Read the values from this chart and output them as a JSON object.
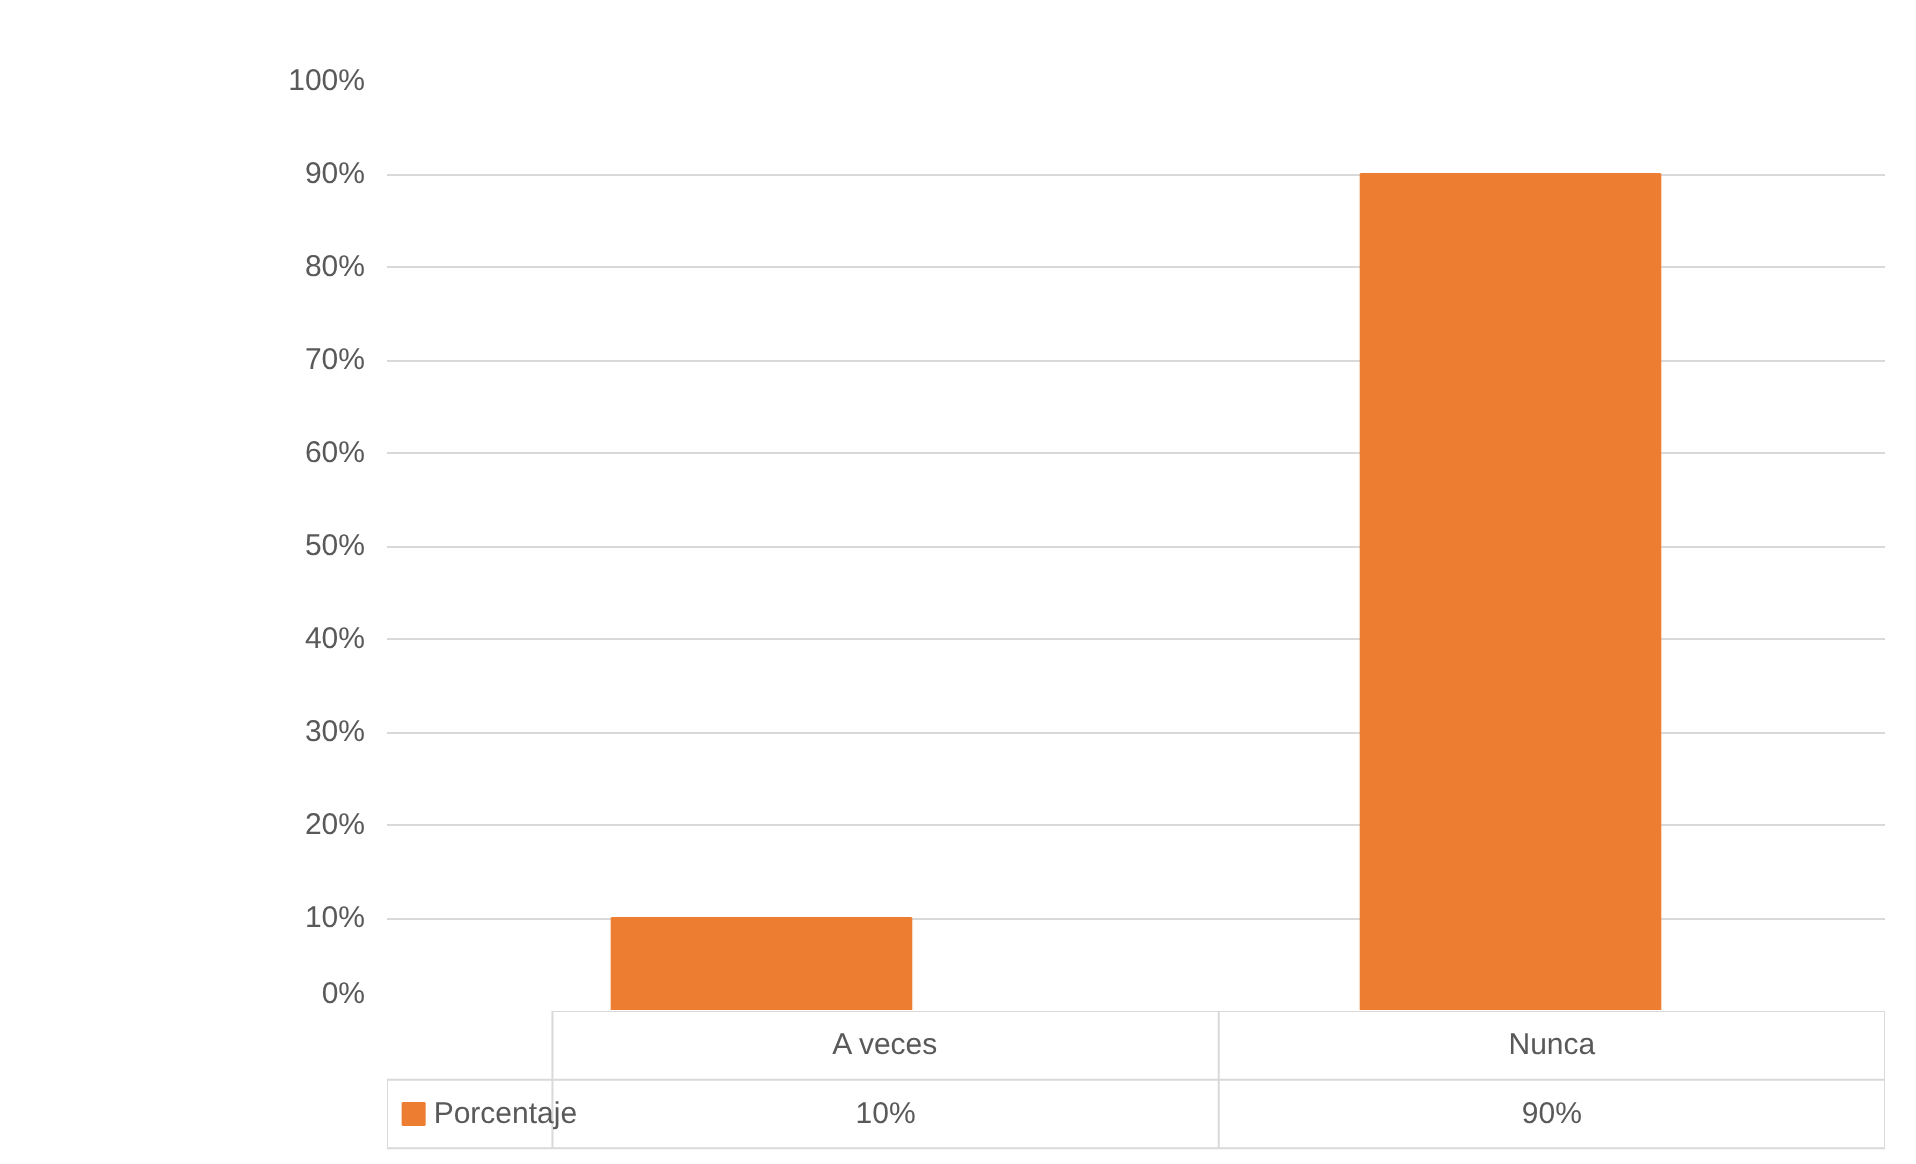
{
  "chart_data": {
    "type": "bar",
    "categories": [
      "A veces",
      "Nunca"
    ],
    "series": [
      {
        "name": "Porcentaje",
        "color": "#ed7d31",
        "values": [
          10,
          90
        ],
        "value_labels": [
          "10%",
          "90%"
        ]
      }
    ],
    "ylim": [
      0,
      100
    ],
    "yticks": [
      {
        "value": 0,
        "label": "0%"
      },
      {
        "value": 10,
        "label": "10%"
      },
      {
        "value": 20,
        "label": "20%"
      },
      {
        "value": 30,
        "label": "30%"
      },
      {
        "value": 40,
        "label": "40%"
      },
      {
        "value": 50,
        "label": "50%"
      },
      {
        "value": 60,
        "label": "60%"
      },
      {
        "value": 70,
        "label": "70%"
      },
      {
        "value": 80,
        "label": "80%"
      },
      {
        "value": 90,
        "label": "90%"
      },
      {
        "value": 100,
        "label": "100%"
      }
    ],
    "grid": "y",
    "legend": "bottom"
  }
}
